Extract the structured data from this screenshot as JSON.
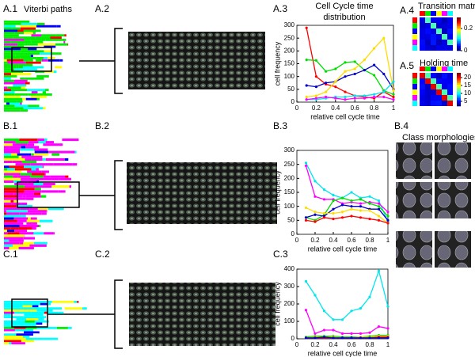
{
  "panel_labels": [
    "A.1",
    "A.2",
    "A.3",
    "A.4",
    "A.5",
    "B.1",
    "B.2",
    "B.3",
    "B.4",
    "C.1",
    "C.2",
    "C.3"
  ],
  "captions": {
    "viterbi": "Viterbi paths",
    "transition": "Transition matrix",
    "holding": "Holding time",
    "morphologies": "Class morphologies"
  },
  "colorbars": {
    "transition": {
      "clim": [
        0,
        0.3
      ],
      "ticks": [
        0,
        0.2
      ]
    },
    "holding": {
      "clim": [
        2,
        23
      ],
      "ticks": [
        5,
        10,
        15,
        20
      ]
    }
  },
  "chart_data": [
    {
      "type": "line",
      "title": [
        "Cell Cycle time",
        "distribution"
      ],
      "x_label": "relative cell cycle time",
      "y_label": "cell frequency",
      "x": [
        0.1,
        0.2,
        0.3,
        0.4,
        0.5,
        0.6,
        0.7,
        0.8,
        0.9,
        1.0
      ],
      "xlim": [
        0,
        1
      ],
      "xticks": [
        0,
        0.2,
        0.4,
        0.6,
        0.8,
        1
      ],
      "ylim": [
        0,
        300
      ],
      "yticks": [
        0,
        50,
        100,
        150,
        200,
        250,
        300
      ],
      "series": [
        {
          "color": "#ff0000",
          "values": [
            290,
            100,
            70,
            60,
            40,
            25,
            20,
            15,
            40,
            20
          ]
        },
        {
          "color": "#00dd00",
          "values": [
            165,
            163,
            120,
            130,
            155,
            158,
            125,
            105,
            45,
            30
          ]
        },
        {
          "color": "#0000cc",
          "values": [
            65,
            60,
            75,
            80,
            100,
            110,
            125,
            145,
            110,
            50
          ]
        },
        {
          "color": "#ffdd00",
          "values": [
            20,
            25,
            40,
            80,
            120,
            130,
            165,
            210,
            250,
            45
          ]
        },
        {
          "color": "#00e5ee",
          "values": [
            10,
            10,
            15,
            20,
            20,
            25,
            25,
            30,
            40,
            80
          ]
        },
        {
          "color": "#ff00ff",
          "values": [
            10,
            15,
            20,
            15,
            10,
            15,
            15,
            20,
            20,
            10
          ]
        }
      ]
    },
    {
      "type": "line",
      "x_label": "relative cell cycle time",
      "y_label": "cell frequency",
      "x": [
        0.1,
        0.2,
        0.3,
        0.4,
        0.5,
        0.6,
        0.7,
        0.8,
        0.9,
        1.0
      ],
      "xlim": [
        0,
        1
      ],
      "xticks": [
        0,
        0.2,
        0.4,
        0.6,
        0.8,
        1
      ],
      "ylim": [
        0,
        300
      ],
      "yticks": [
        0,
        50,
        100,
        150,
        200,
        250,
        300
      ],
      "series": [
        {
          "color": "#00e5ee",
          "values": [
            255,
            190,
            160,
            140,
            130,
            150,
            130,
            135,
            120,
            45
          ]
        },
        {
          "color": "#ff00ff",
          "values": [
            245,
            135,
            125,
            125,
            110,
            115,
            110,
            115,
            110,
            80
          ]
        },
        {
          "color": "#00dd00",
          "values": [
            60,
            50,
            70,
            120,
            130,
            120,
            125,
            110,
            100,
            65
          ]
        },
        {
          "color": "#0000cc",
          "values": [
            60,
            70,
            65,
            90,
            105,
            100,
            100,
            90,
            90,
            50
          ]
        },
        {
          "color": "#ffdd00",
          "values": [
            95,
            80,
            75,
            75,
            80,
            90,
            85,
            85,
            65,
            40
          ]
        },
        {
          "color": "#ff0000",
          "values": [
            50,
            45,
            60,
            55,
            60,
            65,
            60,
            55,
            50,
            40
          ]
        }
      ]
    },
    {
      "type": "line",
      "x_label": "relative cell cycle time",
      "y_label": "cell frequency",
      "x": [
        0.1,
        0.2,
        0.3,
        0.4,
        0.5,
        0.6,
        0.7,
        0.8,
        0.9,
        1.0
      ],
      "xlim": [
        0,
        1
      ],
      "xticks": [
        0,
        0.2,
        0.4,
        0.6,
        0.8,
        1
      ],
      "ylim": [
        0,
        400
      ],
      "yticks": [
        0,
        100,
        200,
        300,
        400
      ],
      "series": [
        {
          "color": "#00e5ee",
          "values": [
            330,
            250,
            160,
            110,
            110,
            160,
            175,
            240,
            390,
            185
          ]
        },
        {
          "color": "#ff00ff",
          "values": [
            165,
            30,
            50,
            50,
            30,
            30,
            30,
            35,
            70,
            60
          ]
        },
        {
          "color": "#00dd00",
          "values": [
            10,
            15,
            15,
            15,
            10,
            10,
            10,
            15,
            20,
            20
          ]
        },
        {
          "color": "#ffdd00",
          "values": [
            5,
            10,
            10,
            10,
            5,
            5,
            10,
            10,
            15,
            15
          ]
        },
        {
          "color": "#ff0000",
          "values": [
            5,
            5,
            5,
            5,
            5,
            5,
            5,
            5,
            10,
            10
          ]
        },
        {
          "color": "#0000cc",
          "values": [
            5,
            5,
            10,
            5,
            5,
            5,
            5,
            5,
            5,
            5
          ]
        }
      ]
    }
  ]
}
